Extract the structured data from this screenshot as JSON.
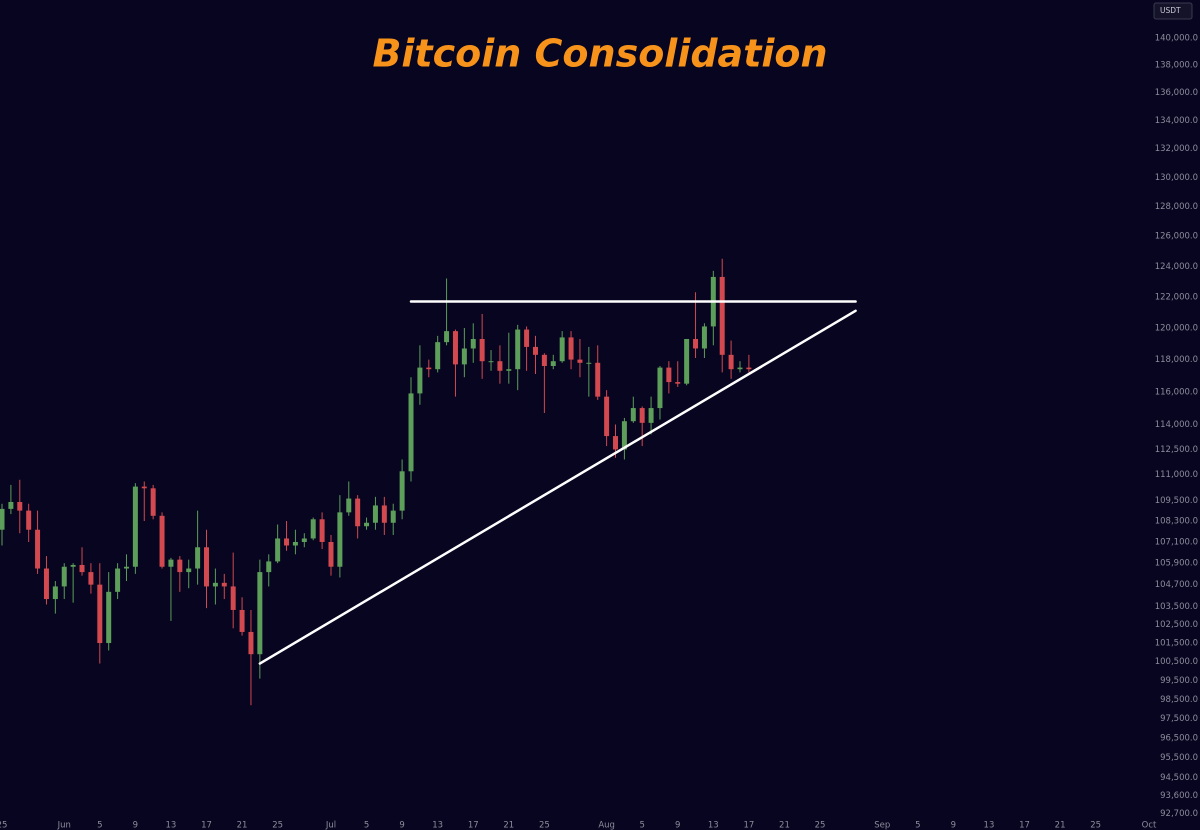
{
  "chart_data": {
    "type": "candlestick",
    "title": "Bitcoin Consolidation",
    "currency": "USDT",
    "log_scale": true,
    "up_color": "#5c9e5a",
    "down_color": "#d2494f",
    "line_color": "#ffffff",
    "title_color": "#f7931a",
    "xlim": [
      "05-25",
      "10-01"
    ],
    "ylim": [
      91900,
      142850
    ],
    "x": [
      "05-25",
      "05-26",
      "05-27",
      "05-28",
      "05-29",
      "05-30",
      "05-31",
      "06-01",
      "06-02",
      "06-03",
      "06-04",
      "06-05",
      "06-06",
      "06-07",
      "06-08",
      "06-09",
      "06-10",
      "06-11",
      "06-12",
      "06-13",
      "06-14",
      "06-15",
      "06-16",
      "06-17",
      "06-18",
      "06-19",
      "06-20",
      "06-21",
      "06-22",
      "06-23",
      "06-24",
      "06-25",
      "06-26",
      "06-27",
      "06-28",
      "06-29",
      "06-30",
      "07-01",
      "07-02",
      "07-03",
      "07-04",
      "07-05",
      "07-06",
      "07-07",
      "07-08",
      "07-09",
      "07-10",
      "07-11",
      "07-12",
      "07-13",
      "07-14",
      "07-15",
      "07-16",
      "07-17",
      "07-18",
      "07-19",
      "07-20",
      "07-21",
      "07-22",
      "07-23",
      "07-24",
      "07-25",
      "07-26",
      "07-27",
      "07-28",
      "07-29",
      "07-30",
      "07-31",
      "08-01",
      "08-02",
      "08-03",
      "08-04",
      "08-05",
      "08-06",
      "08-07",
      "08-08",
      "08-09",
      "08-10",
      "08-11",
      "08-12",
      "08-13",
      "08-14",
      "08-15",
      "08-16",
      "08-17"
    ],
    "open": [
      107800,
      109000,
      109400,
      108900,
      107800,
      105600,
      103900,
      104600,
      105700,
      105800,
      105400,
      104700,
      101500,
      104300,
      105600,
      105700,
      110300,
      110200,
      108600,
      105700,
      106100,
      105400,
      105600,
      106800,
      104600,
      104800,
      104600,
      103300,
      102100,
      100900,
      105400,
      106000,
      107300,
      106900,
      107100,
      107300,
      108400,
      107100,
      105700,
      108800,
      109600,
      108000,
      108200,
      109200,
      108200,
      108900,
      111200,
      115900,
      117500,
      117400,
      119100,
      119800,
      117700,
      118700,
      119300,
      117900,
      117900,
      117300,
      117400,
      119900,
      118800,
      118300,
      117600,
      117900,
      119400,
      118000,
      117800,
      117800,
      115700,
      113300,
      112500,
      114200,
      115000,
      114100,
      115000,
      117500,
      116600,
      116500,
      119300,
      118700,
      120100,
      123300,
      118300,
      117400,
      117500
    ],
    "high": [
      109300,
      110400,
      110700,
      109300,
      108900,
      106300,
      104900,
      105900,
      105900,
      106800,
      105900,
      105900,
      105400,
      105900,
      106400,
      110500,
      110600,
      110400,
      108800,
      106200,
      106300,
      106100,
      108900,
      107800,
      105600,
      105300,
      106500,
      104000,
      103300,
      106100,
      106400,
      108100,
      108300,
      107800,
      107600,
      108500,
      108800,
      107500,
      109800,
      110600,
      109800,
      108500,
      109700,
      109700,
      109300,
      111900,
      116900,
      118900,
      118000,
      119500,
      123200,
      119900,
      120000,
      120300,
      120900,
      118600,
      118900,
      119700,
      120200,
      120100,
      119500,
      118400,
      118300,
      119800,
      119800,
      119300,
      118800,
      118900,
      116100,
      114000,
      114400,
      115700,
      115100,
      115700,
      117600,
      117900,
      117900,
      119300,
      122300,
      120300,
      123700,
      124500,
      119200,
      117900,
      118300
    ],
    "low": [
      106900,
      108700,
      107600,
      107100,
      105300,
      103600,
      103100,
      103900,
      103700,
      105200,
      104200,
      100400,
      101100,
      103900,
      104900,
      105300,
      108300,
      108400,
      105600,
      102700,
      104300,
      104500,
      104700,
      103400,
      103600,
      103900,
      102300,
      101900,
      98200,
      99600,
      104600,
      105900,
      106600,
      106400,
      106800,
      107200,
      106700,
      105200,
      105100,
      108600,
      107300,
      107800,
      107800,
      107500,
      107500,
      108400,
      110600,
      115200,
      116900,
      117200,
      118900,
      115700,
      116900,
      117800,
      116800,
      117300,
      116500,
      116500,
      116100,
      117300,
      117100,
      114700,
      117400,
      117800,
      117400,
      116900,
      115700,
      115500,
      112700,
      112000,
      111900,
      114100,
      112700,
      113400,
      114300,
      115900,
      116300,
      116400,
      118100,
      118100,
      118900,
      117200,
      116800,
      117200,
      117200
    ],
    "close": [
      109000,
      109400,
      108900,
      107800,
      105600,
      103900,
      104600,
      105700,
      105800,
      105400,
      104700,
      101500,
      104300,
      105600,
      105700,
      110300,
      110200,
      108600,
      105700,
      106100,
      105400,
      105600,
      106800,
      104600,
      104800,
      104600,
      103300,
      102100,
      100900,
      105400,
      106000,
      107300,
      106900,
      107100,
      107300,
      108400,
      107100,
      105700,
      108800,
      109600,
      108000,
      108200,
      109200,
      108200,
      108900,
      111200,
      115900,
      117500,
      117400,
      119100,
      119800,
      117700,
      118700,
      119300,
      117900,
      117900,
      117300,
      117400,
      119900,
      118800,
      118300,
      117600,
      117900,
      119400,
      118000,
      117800,
      117800,
      115700,
      113300,
      112500,
      114200,
      115000,
      114100,
      115000,
      117500,
      116600,
      116500,
      119300,
      118700,
      120100,
      123300,
      118300,
      117400,
      117500,
      117400
    ],
    "trendlines": [
      {
        "x": [
          "07-10",
          "08-29"
        ],
        "y": [
          121700,
          121700
        ]
      },
      {
        "x": [
          "06-23",
          "08-29"
        ],
        "y": [
          100400,
          121100
        ]
      }
    ],
    "xticks": [
      {
        "value": "05-25",
        "label": "25"
      },
      {
        "value": "06-01",
        "label": "Jun"
      },
      {
        "value": "06-05",
        "label": "5"
      },
      {
        "value": "06-09",
        "label": "9"
      },
      {
        "value": "06-13",
        "label": "13"
      },
      {
        "value": "06-17",
        "label": "17"
      },
      {
        "value": "06-21",
        "label": "21"
      },
      {
        "value": "06-25",
        "label": "25"
      },
      {
        "value": "07-01",
        "label": "Jul"
      },
      {
        "value": "07-05",
        "label": "5"
      },
      {
        "value": "07-09",
        "label": "9"
      },
      {
        "value": "07-13",
        "label": "13"
      },
      {
        "value": "07-17",
        "label": "17"
      },
      {
        "value": "07-21",
        "label": "21"
      },
      {
        "value": "07-25",
        "label": "25"
      },
      {
        "value": "08-01",
        "label": "Aug"
      },
      {
        "value": "08-05",
        "label": "5"
      },
      {
        "value": "08-09",
        "label": "9"
      },
      {
        "value": "08-13",
        "label": "13"
      },
      {
        "value": "08-17",
        "label": "17"
      },
      {
        "value": "08-21",
        "label": "21"
      },
      {
        "value": "08-25",
        "label": "25"
      },
      {
        "value": "09-01",
        "label": "Sep"
      },
      {
        "value": "09-05",
        "label": "5"
      },
      {
        "value": "09-09",
        "label": "9"
      },
      {
        "value": "09-13",
        "label": "13"
      },
      {
        "value": "09-17",
        "label": "17"
      },
      {
        "value": "09-21",
        "label": "21"
      },
      {
        "value": "09-25",
        "label": "25"
      },
      {
        "value": "10-01",
        "label": "Oct"
      }
    ],
    "yticks": [
      {
        "value": 140000,
        "label": "140,000.0"
      },
      {
        "value": 138000,
        "label": "138,000.0"
      },
      {
        "value": 136000,
        "label": "136,000.0"
      },
      {
        "value": 134000,
        "label": "134,000.0"
      },
      {
        "value": 132000,
        "label": "132,000.0"
      },
      {
        "value": 130000,
        "label": "130,000.0"
      },
      {
        "value": 128000,
        "label": "128,000.0"
      },
      {
        "value": 126000,
        "label": "126,000.0"
      },
      {
        "value": 124000,
        "label": "124,000.0"
      },
      {
        "value": 122000,
        "label": "122,000.0"
      },
      {
        "value": 120000,
        "label": "120,000.0"
      },
      {
        "value": 118000,
        "label": "118,000.0"
      },
      {
        "value": 116000,
        "label": "116,000.0"
      },
      {
        "value": 114000,
        "label": "114,000.0"
      },
      {
        "value": 112500,
        "label": "112,500.0"
      },
      {
        "value": 111000,
        "label": "111,000.0"
      },
      {
        "value": 109500,
        "label": "109,500.0"
      },
      {
        "value": 108300,
        "label": "108,300.0"
      },
      {
        "value": 107100,
        "label": "107,100.0"
      },
      {
        "value": 105900,
        "label": "105,900.0"
      },
      {
        "value": 104700,
        "label": "104,700.0"
      },
      {
        "value": 103500,
        "label": "103,500.0"
      },
      {
        "value": 102500,
        "label": "102,500.0"
      },
      {
        "value": 101500,
        "label": "101,500.0"
      },
      {
        "value": 100500,
        "label": "100,500.0"
      },
      {
        "value": 99500,
        "label": "99,500.0"
      },
      {
        "value": 98500,
        "label": "98,500.0"
      },
      {
        "value": 97500,
        "label": "97,500.0"
      },
      {
        "value": 96500,
        "label": "96,500.0"
      },
      {
        "value": 95500,
        "label": "95,500.0"
      },
      {
        "value": 94500,
        "label": "94,500.0"
      },
      {
        "value": 93600,
        "label": "93,600.0"
      },
      {
        "value": 92700,
        "label": "92,700.0"
      }
    ]
  }
}
